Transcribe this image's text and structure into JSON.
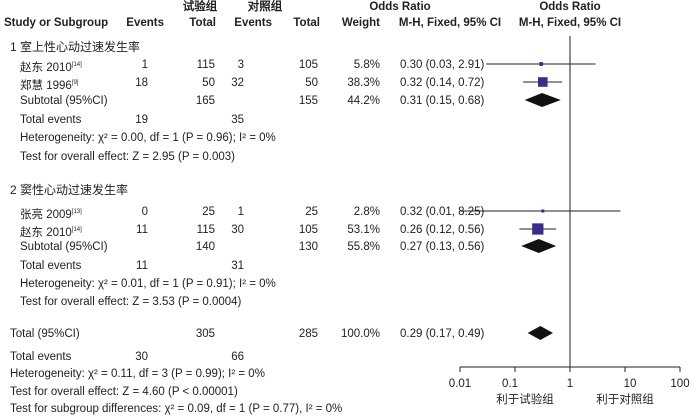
{
  "headers": {
    "group_exp": "试验组",
    "group_ctl": "对照组",
    "study": "Study or Subgroup",
    "events_exp": "Events",
    "total_exp": "Total",
    "events_ctl": "Events",
    "total_ctl": "Total",
    "weight": "Weight",
    "or_text_title": "Odds Ratio",
    "or_text_sub": "M-H, Fixed, 95% CI",
    "or_plot_title": "Odds Ratio",
    "or_plot_sub": "M-H, Fixed, 95% CI"
  },
  "subgroups": [
    {
      "label": "1 室上性心动过速发生率",
      "studies": [
        {
          "name": "赵东 2010",
          "ref": "[14]",
          "e1": "1",
          "n1": "115",
          "e2": "3",
          "n2": "105",
          "weight": "5.8%",
          "ci": "0.30 (0.03, 2.91)"
        },
        {
          "name": "郑慧 1996",
          "ref": "[9]",
          "e1": "18",
          "n1": "50",
          "e2": "32",
          "n2": "50",
          "weight": "38.3%",
          "ci": "0.32 (0.14, 0.72)"
        }
      ],
      "subtotal": {
        "label": "Subtotal (95%CI)",
        "n1": "165",
        "n2": "155",
        "weight": "44.2%",
        "ci": "0.31 (0.15, 0.68)"
      },
      "total_events": {
        "label": "Total events",
        "e1": "19",
        "e2": "35"
      },
      "heterogeneity": "Heterogeneity: χ² = 0.00, df = 1 (P = 0.96); I² = 0%",
      "overall": "Test for overall effect: Z = 2.95 (P = 0.003)"
    },
    {
      "label": "2 窦性心动过速发生率",
      "studies": [
        {
          "name": "张亮 2009",
          "ref": "[13]",
          "e1": "0",
          "n1": "25",
          "e2": "1",
          "n2": "25",
          "weight": "2.8%",
          "ci": "0.32 (0.01, 8.25)"
        },
        {
          "name": "赵东 2010",
          "ref": "[14]",
          "e1": "11",
          "n1": "115",
          "e2": "30",
          "n2": "105",
          "weight": "53.1%",
          "ci": "0.26 (0.12, 0.56)"
        }
      ],
      "subtotal": {
        "label": "Subtotal (95%CI)",
        "n1": "140",
        "n2": "130",
        "weight": "55.8%",
        "ci": "0.27 (0.13, 0.56)"
      },
      "total_events": {
        "label": "Total events",
        "e1": "11",
        "e2": "31"
      },
      "heterogeneity": "Heterogeneity: χ² = 0.01, df = 1 (P = 0.91); I² = 0%",
      "overall": "Test for overall effect: Z = 3.53 (P = 0.0004)"
    }
  ],
  "total": {
    "label": "Total (95%CI)",
    "n1": "305",
    "n2": "285",
    "weight": "100.0%",
    "ci": "0.29 (0.17, 0.49)",
    "events_label": "Total events",
    "e1": "30",
    "e2": "66",
    "heterogeneity": "Heterogeneity: χ² = 0.11, df = 3 (P = 0.99); I² = 0%",
    "overall": "Test for overall effect: Z = 4.60 (P < 0.00001)",
    "subgroup_diff": "Test for subgroup differences: χ² = 0.09, df = 1 (P = 0.77), I² = 0%"
  },
  "axis": {
    "ticks": [
      "0.01",
      "0.1",
      "1",
      "10",
      "100"
    ],
    "favours_left": "利于试验组",
    "favours_right": "利于对照组"
  },
  "chart_data": {
    "type": "scatter",
    "scale": "log",
    "xlim": [
      0.01,
      100
    ],
    "reference_line": 1,
    "tick_values": [
      0.01,
      0.1,
      1,
      10,
      100
    ],
    "studies": [
      {
        "label": "赵东 2010",
        "or": 0.3,
        "lower": 0.03,
        "upper": 2.91,
        "weight": 5.8
      },
      {
        "label": "郑慧 1996",
        "or": 0.32,
        "lower": 0.14,
        "upper": 0.72,
        "weight": 38.3
      },
      {
        "label": "张亮 2009",
        "or": 0.32,
        "lower": 0.01,
        "upper": 8.25,
        "weight": 2.8
      },
      {
        "label": "赵东 2010",
        "or": 0.26,
        "lower": 0.12,
        "upper": 0.56,
        "weight": 53.1
      }
    ],
    "diamonds": [
      {
        "label": "Subtotal (95%CI)",
        "or": 0.31,
        "lower": 0.15,
        "upper": 0.68
      },
      {
        "label": "Subtotal (95%CI)",
        "or": 0.27,
        "lower": 0.13,
        "upper": 0.56
      },
      {
        "label": "Total (95%CI)",
        "or": 0.29,
        "lower": 0.17,
        "upper": 0.49
      }
    ]
  }
}
